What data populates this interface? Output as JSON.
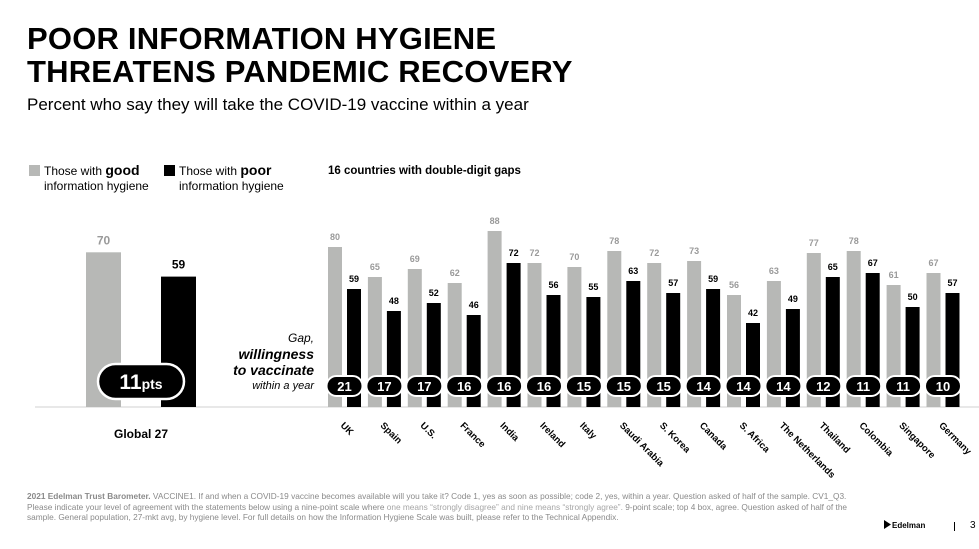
{
  "header": {
    "title_line1": "POOR INFORMATION HYGIENE",
    "title_line2": "THREATENS PANDEMIC RECOVERY",
    "subtitle": "Percent who say they will take the COVID-19 vaccine within a year"
  },
  "legend": {
    "good_prefix": "Those with ",
    "good_bold": "good",
    "good_line2": "information hygiene",
    "poor_prefix": "Those with ",
    "poor_bold": "poor",
    "poor_line2": "information hygiene"
  },
  "gaps_title": "16 countries with double-digit gaps",
  "gap_label": {
    "line1": "Gap,",
    "line2": "willingness",
    "line3": "to vaccinate",
    "line4": "within a year"
  },
  "colors": {
    "good": "#b7b8b6",
    "poor": "#000000",
    "good_label": "#9a9a9a"
  },
  "chart_data": [
    {
      "type": "bar",
      "categories": [
        "Global 27"
      ],
      "series": [
        {
          "name": "Those with good information hygiene",
          "values": [
            70
          ]
        },
        {
          "name": "Those with poor information hygiene",
          "values": [
            59
          ]
        }
      ],
      "gap_labels": [
        "11pts"
      ],
      "ylim": [
        0,
        100
      ]
    },
    {
      "type": "bar",
      "title": "16 countries with double-digit gaps",
      "categories": [
        "UK",
        "Spain",
        "U.S.",
        "France",
        "India",
        "Ireland",
        "Italy",
        "Saudi Arabia",
        "S. Korea",
        "Canada",
        "S. Africa",
        "The Netherlands",
        "Thailand",
        "Colombia",
        "Singapore",
        "Germany"
      ],
      "series": [
        {
          "name": "Those with good information hygiene",
          "values": [
            80,
            65,
            69,
            62,
            88,
            72,
            70,
            78,
            72,
            73,
            56,
            63,
            77,
            78,
            61,
            67
          ]
        },
        {
          "name": "Those with poor information hygiene",
          "values": [
            59,
            48,
            52,
            46,
            72,
            56,
            55,
            63,
            57,
            59,
            42,
            49,
            65,
            67,
            50,
            57
          ]
        }
      ],
      "gaps": [
        "21",
        "17",
        "17",
        "16",
        "16",
        "16",
        "15",
        "15",
        "15",
        "14",
        "14",
        "14",
        "12",
        "11",
        "11",
        "10"
      ],
      "ylim": [
        0,
        100
      ]
    }
  ],
  "footnote": {
    "source": "2021 Edelman Trust Barometer.",
    "text1": " VACCINE1.  If and when a COVID-19 vaccine becomes available will you take it? Code 1, yes as soon as possible; code 2, yes,  within a year.  Question asked of half of the sample. CV1_Q3. Please indicate your level of agreement with the statements below using a nine-point scale where ",
    "text2": "one means “strongly disagree” and nine means “strongly agree”.",
    "text3": " 9-point scale; top 4 box, agree. Question asked of half of the sample. General population, 27-mkt avg, by hygiene level. For full details on how the Information Hygiene Scale was built, please refer to the Technical Appendix."
  },
  "logo": "Edelman",
  "page_number": "3"
}
